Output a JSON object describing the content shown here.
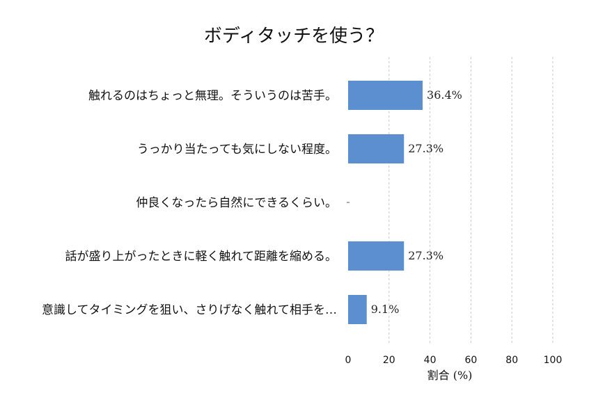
{
  "chart_data": {
    "type": "bar",
    "orientation": "horizontal",
    "title": "ボディタッチを使う？",
    "xlabel": "割合 (%)",
    "ylabel": "",
    "xlim": [
      0,
      100
    ],
    "xticks": [
      "0",
      "20",
      "40",
      "60",
      "80",
      "100"
    ],
    "grid": true,
    "bar_color": "#5b8fd0",
    "categories": [
      "触れるのはちょっと無理。そういうのは苦手。",
      "うっかり当たっても気にしない程度。",
      "仲良くなったら自然にできるくらい。",
      "話が盛り上がったときに軽く触れて距離を縮める。",
      "意識してタイミングを狙い、さりげなく触れて相手を…"
    ],
    "values": [
      36.4,
      27.3,
      0,
      27.3,
      9.1
    ],
    "value_labels": [
      "36.4%",
      "27.3%",
      "",
      "27.3%",
      "9.1%"
    ]
  }
}
